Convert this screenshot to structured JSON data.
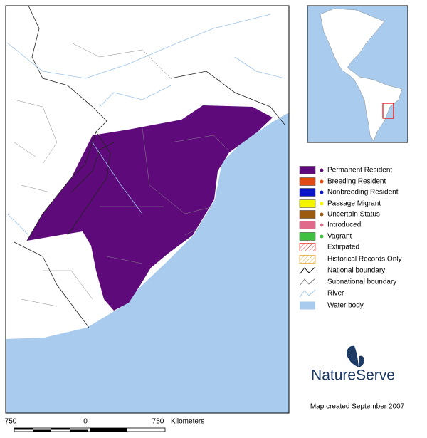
{
  "legend": [
    "Permanent Resident",
    "Breeding Resident",
    "Nonbreeding Resident",
    "Passage Migrant",
    "Uncertain Status",
    "Introduced",
    "Vagrant",
    "Extirpated",
    "Historical Records Only",
    "National boundary",
    "Subnational boundary",
    "River",
    "Water body"
  ],
  "logo": "NatureServe",
  "credit": "Map created September 2007",
  "scale_bar": {
    "labels": [
      "750",
      "0",
      "750"
    ],
    "unit": "Kilometers"
  }
}
